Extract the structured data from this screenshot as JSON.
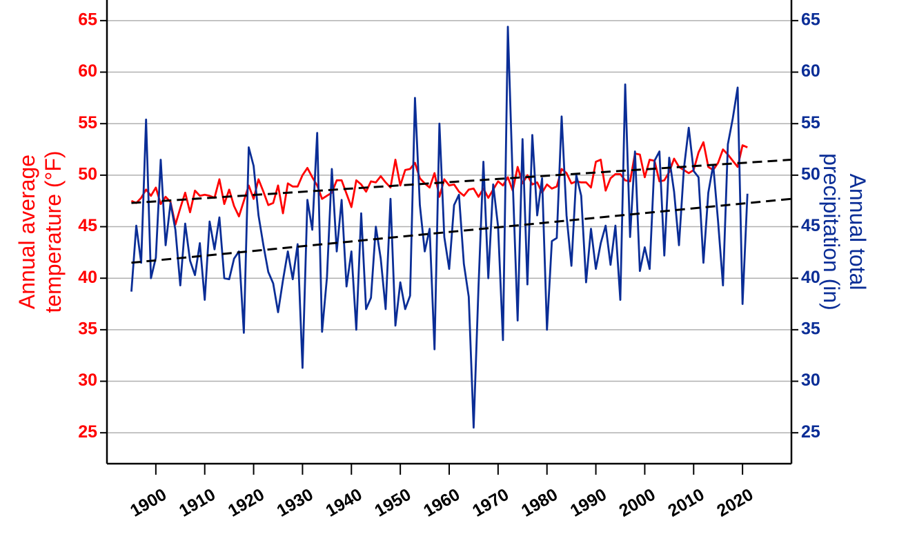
{
  "chart_data": {
    "type": "line",
    "ylabel": [
      "Annual average",
      "temperature (°F)"
    ],
    "y2label": [
      "Annual total",
      "precipitation (in)"
    ],
    "xlim": [
      1890,
      2030
    ],
    "xticks": [
      1900,
      1910,
      1920,
      1930,
      1940,
      1950,
      1960,
      1970,
      1980,
      1990,
      2000,
      2010,
      2020
    ],
    "ylim": [
      22,
      67
    ],
    "yticks": [
      25,
      30,
      35,
      40,
      45,
      50,
      55,
      60,
      65
    ],
    "y2lim": [
      22,
      67
    ],
    "y2ticks": [
      25,
      30,
      35,
      40,
      45,
      50,
      55,
      60,
      65
    ],
    "ycolor": "#ff0000",
    "y2color": "#0a2d96",
    "grid": true,
    "x": [
      1895,
      1896,
      1897,
      1898,
      1899,
      1900,
      1901,
      1902,
      1903,
      1904,
      1905,
      1906,
      1907,
      1908,
      1909,
      1910,
      1911,
      1912,
      1913,
      1914,
      1915,
      1916,
      1917,
      1918,
      1919,
      1920,
      1921,
      1922,
      1923,
      1924,
      1925,
      1926,
      1927,
      1928,
      1929,
      1930,
      1931,
      1932,
      1933,
      1934,
      1935,
      1936,
      1937,
      1938,
      1939,
      1940,
      1941,
      1942,
      1943,
      1944,
      1945,
      1946,
      1947,
      1948,
      1949,
      1950,
      1951,
      1952,
      1953,
      1954,
      1955,
      1956,
      1957,
      1958,
      1959,
      1960,
      1961,
      1962,
      1963,
      1964,
      1965,
      1966,
      1967,
      1968,
      1969,
      1970,
      1971,
      1972,
      1973,
      1974,
      1975,
      1976,
      1977,
      1978,
      1979,
      1980,
      1981,
      1982,
      1983,
      1984,
      1985,
      1986,
      1987,
      1988,
      1989,
      1990,
      1991,
      1992,
      1993,
      1994,
      1995,
      1996,
      1997,
      1998,
      1999,
      2000,
      2001,
      2002,
      2003,
      2004,
      2005,
      2006,
      2007,
      2008,
      2009,
      2010,
      2011,
      2012,
      2013,
      2014,
      2015,
      2016,
      2017,
      2018,
      2019,
      2020,
      2021
    ],
    "series": [
      {
        "color": "#ff0000",
        "axis": "y",
        "values": [
          47.5,
          47.3,
          47.8,
          48.6,
          48.0,
          48.8,
          47.2,
          47.9,
          47.4,
          45.2,
          46.8,
          48.3,
          46.4,
          48.5,
          48.0,
          48.1,
          48.0,
          47.8,
          49.6,
          47.2,
          48.6,
          47.0,
          46.0,
          47.5,
          49.0,
          47.7,
          49.6,
          48.4,
          47.1,
          47.3,
          49.0,
          46.3,
          49.2,
          48.9,
          48.9,
          50.0,
          50.7,
          49.8,
          49.0,
          47.7,
          48.0,
          48.3,
          49.5,
          49.5,
          48.2,
          46.9,
          49.5,
          49.1,
          48.4,
          49.4,
          49.3,
          49.9,
          49.3,
          48.8,
          51.5,
          49.0,
          50.5,
          50.6,
          51.2,
          49.7,
          49.2,
          48.8,
          50.2,
          47.9,
          49.6,
          49.0,
          49.1,
          48.4,
          48.0,
          48.6,
          48.7,
          47.9,
          48.7,
          47.8,
          48.6,
          49.4,
          49.0,
          49.8,
          48.5,
          50.8,
          49.2,
          50.0,
          49.1,
          49.3,
          48.3,
          49.1,
          48.7,
          48.9,
          50.6,
          50.2,
          49.2,
          49.4,
          49.3,
          49.3,
          48.8,
          51.3,
          51.5,
          48.5,
          49.7,
          50.1,
          50.1,
          49.5,
          49.4,
          52.1,
          52.0,
          49.8,
          51.5,
          51.4,
          49.4,
          49.5,
          50.3,
          51.6,
          50.8,
          50.5,
          50.2,
          50.5,
          52.2,
          53.2,
          50.8,
          50.5,
          51.2,
          52.5,
          52.0,
          51.4,
          50.8,
          52.9,
          52.7
        ]
      },
      {
        "color": "#0a2d96",
        "axis": "y2",
        "values": [
          38.7,
          45.1,
          41.5,
          55.4,
          40.0,
          42.0,
          51.5,
          43.2,
          47.3,
          44.7,
          39.3,
          45.3,
          41.7,
          40.3,
          43.4,
          37.9,
          45.5,
          42.8,
          45.9,
          40.0,
          39.9,
          41.9,
          42.6,
          34.7,
          52.7,
          50.9,
          46.1,
          43.2,
          40.6,
          39.5,
          36.7,
          39.8,
          42.6,
          39.9,
          43.3,
          31.3,
          47.6,
          44.7,
          54.1,
          34.8,
          40.1,
          50.6,
          42.6,
          47.6,
          39.2,
          42.6,
          35.0,
          46.3,
          37.0,
          38.1,
          45.0,
          41.9,
          37.0,
          47.7,
          35.4,
          39.6,
          37.0,
          38.3,
          57.5,
          47.1,
          42.6,
          44.8,
          33.1,
          55.0,
          44.0,
          40.9,
          47.1,
          48.1,
          41.4,
          38.2,
          25.5,
          39.2,
          51.3,
          40.0,
          49.1,
          45.0,
          34.0,
          64.4,
          49.4,
          35.9,
          53.5,
          39.4,
          53.9,
          46.1,
          49.7,
          35.0,
          43.6,
          43.9,
          55.7,
          46.1,
          41.2,
          50.0,
          48.0,
          39.6,
          44.8,
          40.9,
          43.4,
          45.1,
          41.3,
          45.1,
          37.9,
          58.8,
          44.0,
          52.3,
          40.7,
          43.0,
          40.9,
          51.4,
          52.3,
          42.2,
          51.7,
          48.4,
          43.2,
          50.6,
          54.6,
          50.4,
          49.8,
          41.5,
          48.3,
          51.0,
          45.5,
          39.3,
          53.0,
          55.5,
          58.5,
          37.5,
          48.2
        ]
      },
      {
        "color": "#000000",
        "axis": "y",
        "dashed": true,
        "x": [
          1895,
          2030
        ],
        "values": [
          47.3,
          51.5
        ]
      },
      {
        "color": "#000000",
        "axis": "y2",
        "dashed": true,
        "x": [
          1895,
          2030
        ],
        "values": [
          41.5,
          47.7
        ]
      }
    ]
  }
}
